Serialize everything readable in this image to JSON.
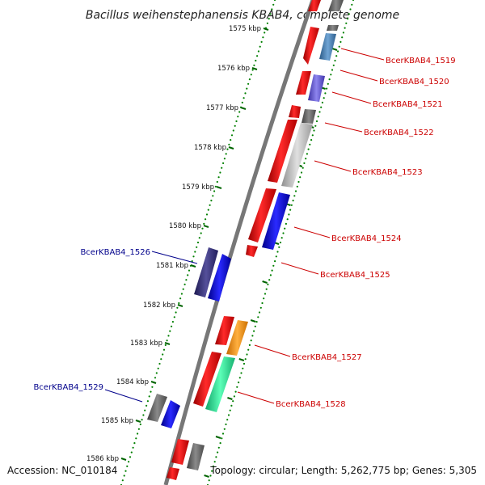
{
  "title": "Bacillus weihenstephanensis KBAB4, complete genome",
  "footer": {
    "accession": "Accession: NC_010184",
    "summary": "Topology: circular; Length: 5,262,775 bp; Genes: 5,305"
  },
  "ruler_labels": [
    "1575 kbp",
    "1576 kbp",
    "1577 kbp",
    "1578 kbp",
    "1579 kbp",
    "1580 kbp",
    "1581 kbp",
    "1582 kbp",
    "1583 kbp",
    "1584 kbp",
    "1585 kbp",
    "1586 kbp"
  ],
  "gene_labels": [
    {
      "name": "BcerKBAB4_1519",
      "strand": "forward"
    },
    {
      "name": "BcerKBAB4_1520",
      "strand": "forward"
    },
    {
      "name": "BcerKBAB4_1521",
      "strand": "forward"
    },
    {
      "name": "BcerKBAB4_1522",
      "strand": "forward"
    },
    {
      "name": "BcerKBAB4_1523",
      "strand": "forward"
    },
    {
      "name": "BcerKBAB4_1524",
      "strand": "forward"
    },
    {
      "name": "BcerKBAB4_1525",
      "strand": "forward"
    },
    {
      "name": "BcerKBAB4_1526",
      "strand": "reverse"
    },
    {
      "name": "BcerKBAB4_1527",
      "strand": "forward"
    },
    {
      "name": "BcerKBAB4_1528",
      "strand": "forward"
    },
    {
      "name": "BcerKBAB4_1529",
      "strand": "reverse"
    }
  ],
  "colors": {
    "cds": "#ff0000",
    "forward_label": "#cc0000",
    "reverse_label": "#00008b",
    "backbone": "#808080",
    "ruler_dots": "#008000"
  }
}
